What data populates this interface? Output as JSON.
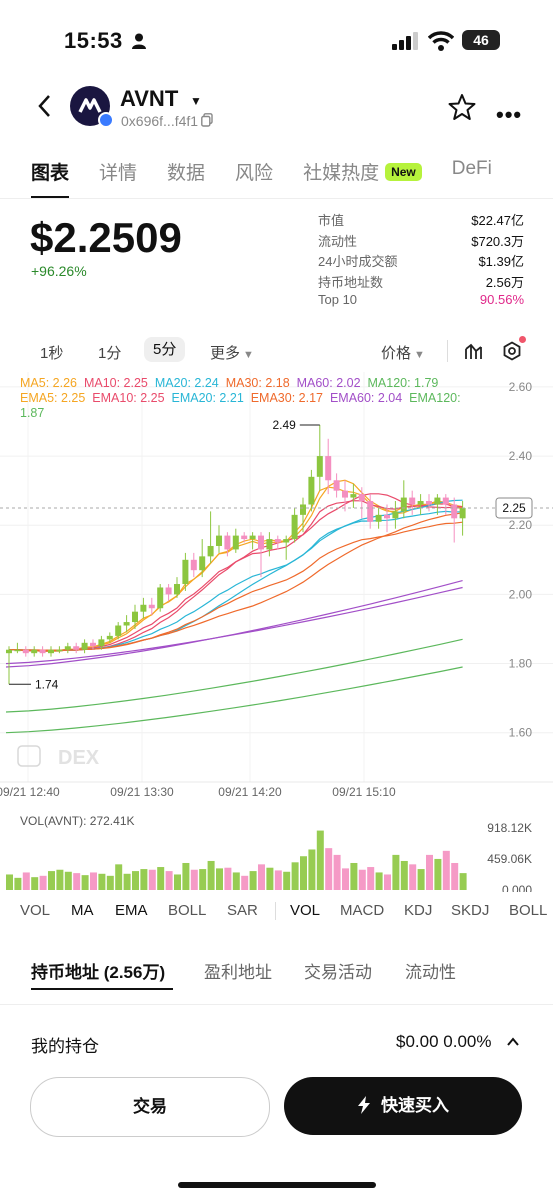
{
  "status": {
    "time": "15:53",
    "battery": "46"
  },
  "header": {
    "token": "AVNT",
    "address": "0x696f...f4f1"
  },
  "tabs": [
    {
      "label": "图表"
    },
    {
      "label": "详情"
    },
    {
      "label": "数据"
    },
    {
      "label": "风险"
    },
    {
      "label": "社媒热度",
      "badge": "New"
    },
    {
      "label": "DeFi"
    }
  ],
  "price": {
    "value": "$2.2509",
    "change": "+96.26%"
  },
  "stats": [
    {
      "k": "市值",
      "v": "$22.47亿"
    },
    {
      "k": "流动性",
      "v": "$720.3万"
    },
    {
      "k": "24小时成交额",
      "v": "$1.39亿"
    },
    {
      "k": "持币地址数",
      "v": "2.56万"
    },
    {
      "k": "Top 10",
      "v": "90.56%"
    }
  ],
  "timeframes": {
    "t1": "1秒",
    "t2": "1分",
    "t3": "5分",
    "more": "更多",
    "price": "价格"
  },
  "ma_legend": {
    "ma5": "MA5: 2.26",
    "ma10": "MA10: 2.25",
    "ma20": "MA20: 2.24",
    "ma30": "MA30: 2.18",
    "ma60": "MA60: 2.02",
    "ma120": "MA120: 1.79",
    "ema5": "EMA5: 2.25",
    "ema10": "EMA10: 2.25",
    "ema20": "EMA20: 2.21",
    "ema30": "EMA30: 2.17",
    "ema60": "EMA60: 2.04",
    "ema120a": "EMA120:",
    "ema120b": "1.87"
  },
  "chart_data": {
    "type": "candlestick",
    "y_ticks": [
      "2.60",
      "2.40",
      "2.20",
      "2.00",
      "1.80",
      "1.60"
    ],
    "ylim": [
      1.55,
      2.62
    ],
    "x_labels": [
      "09/21 12:40",
      "09/21 13:30",
      "09/21 14:20",
      "09/21 15:10"
    ],
    "current_price": "2.25",
    "high_label": "2.49",
    "low_label": "1.74",
    "watermark": "DEX",
    "candles": [
      [
        1.83,
        1.84,
        1.74,
        1.85
      ],
      [
        1.84,
        1.84,
        1.83,
        1.86
      ],
      [
        1.84,
        1.83,
        1.82,
        1.85
      ],
      [
        1.83,
        1.84,
        1.82,
        1.85
      ],
      [
        1.84,
        1.83,
        1.82,
        1.85
      ],
      [
        1.83,
        1.84,
        1.82,
        1.85
      ],
      [
        1.84,
        1.84,
        1.83,
        1.85
      ],
      [
        1.84,
        1.85,
        1.83,
        1.86
      ],
      [
        1.85,
        1.84,
        1.83,
        1.86
      ],
      [
        1.84,
        1.86,
        1.83,
        1.87
      ],
      [
        1.86,
        1.85,
        1.84,
        1.87
      ],
      [
        1.85,
        1.87,
        1.84,
        1.88
      ],
      [
        1.87,
        1.88,
        1.86,
        1.89
      ],
      [
        1.88,
        1.91,
        1.87,
        1.92
      ],
      [
        1.91,
        1.92,
        1.89,
        1.94
      ],
      [
        1.92,
        1.95,
        1.9,
        1.97
      ],
      [
        1.95,
        1.97,
        1.93,
        1.99
      ],
      [
        1.97,
        1.96,
        1.94,
        1.99
      ],
      [
        1.96,
        2.02,
        1.95,
        2.03
      ],
      [
        2.02,
        2.0,
        1.98,
        2.03
      ],
      [
        2.0,
        2.03,
        1.99,
        2.05
      ],
      [
        2.03,
        2.1,
        2.01,
        2.12
      ],
      [
        2.1,
        2.07,
        2.05,
        2.12
      ],
      [
        2.07,
        2.11,
        2.05,
        2.16
      ],
      [
        2.11,
        2.14,
        2.09,
        2.24
      ],
      [
        2.14,
        2.17,
        2.12,
        2.2
      ],
      [
        2.17,
        2.13,
        2.11,
        2.18
      ],
      [
        2.13,
        2.17,
        2.12,
        2.19
      ],
      [
        2.17,
        2.16,
        2.15,
        2.18
      ],
      [
        2.16,
        2.17,
        2.13,
        2.18
      ],
      [
        2.17,
        2.13,
        2.05,
        2.18
      ],
      [
        2.13,
        2.16,
        2.11,
        2.18
      ],
      [
        2.16,
        2.15,
        2.13,
        2.17
      ],
      [
        2.15,
        2.16,
        2.1,
        2.17
      ],
      [
        2.16,
        2.23,
        2.15,
        2.25
      ],
      [
        2.23,
        2.26,
        2.18,
        2.28
      ],
      [
        2.26,
        2.34,
        2.24,
        2.36
      ],
      [
        2.34,
        2.4,
        2.3,
        2.49
      ],
      [
        2.4,
        2.33,
        2.29,
        2.45
      ],
      [
        2.33,
        2.3,
        2.28,
        2.35
      ],
      [
        2.3,
        2.28,
        2.24,
        2.33
      ],
      [
        2.28,
        2.29,
        2.25,
        2.32
      ],
      [
        2.29,
        2.27,
        2.22,
        2.31
      ],
      [
        2.27,
        2.21,
        2.19,
        2.29
      ],
      [
        2.21,
        2.23,
        2.19,
        2.25
      ],
      [
        2.23,
        2.22,
        2.18,
        2.26
      ],
      [
        2.22,
        2.24,
        2.19,
        2.27
      ],
      [
        2.24,
        2.28,
        2.22,
        2.33
      ],
      [
        2.28,
        2.26,
        2.23,
        2.3
      ],
      [
        2.26,
        2.27,
        2.23,
        2.29
      ],
      [
        2.27,
        2.26,
        2.24,
        2.29
      ],
      [
        2.26,
        2.28,
        2.23,
        2.29
      ],
      [
        2.28,
        2.26,
        2.23,
        2.29
      ],
      [
        2.26,
        2.22,
        2.15,
        2.28
      ],
      [
        2.22,
        2.25,
        2.17,
        2.27
      ]
    ],
    "volume": {
      "y_ticks": [
        "918.12K",
        "459.06K",
        "0.000"
      ],
      "label": "VOL(AVNT): 272.41K",
      "values": [
        230,
        180,
        260,
        190,
        210,
        280,
        300,
        270,
        250,
        220,
        260,
        240,
        210,
        380,
        240,
        280,
        310,
        300,
        340,
        280,
        230,
        400,
        300,
        310,
        430,
        320,
        330,
        260,
        210,
        280,
        380,
        330,
        290,
        270,
        410,
        500,
        600,
        880,
        620,
        520,
        320,
        400,
        300,
        340,
        260,
        230,
        520,
        430,
        380,
        310,
        520,
        460,
        580,
        400,
        250
      ]
    }
  },
  "indicators": [
    "VOL",
    "MA",
    "EMA",
    "BOLL",
    "SAR",
    "VOL",
    "MACD",
    "KDJ",
    "SKDJ",
    "BOLL"
  ],
  "bottom_tabs": [
    "持币地址 (2.56万)",
    "盈利地址",
    "交易活动",
    "流动性"
  ],
  "holding": {
    "label": "我的持仓",
    "value": "$0.00 0.00%"
  },
  "buttons": {
    "trade": "交易",
    "quick_buy": "快速买入"
  },
  "colors": {
    "up": "#8cc63f",
    "down": "#f48fc0",
    "accent_new": "#b6f23c",
    "pink": "#e0288a"
  }
}
